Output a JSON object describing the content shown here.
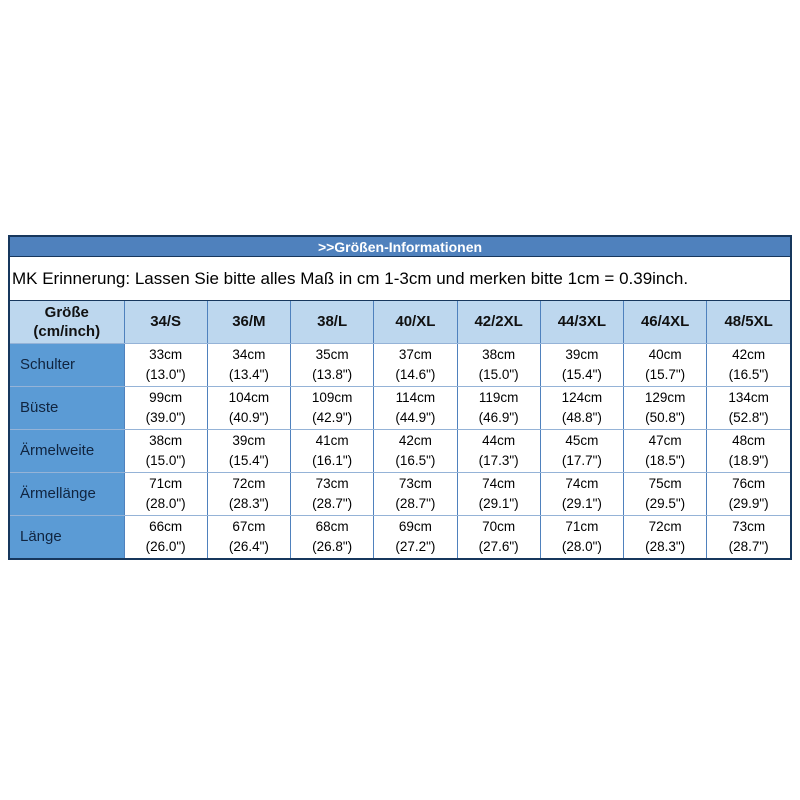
{
  "title_bar": {
    "text": ">>Größen-Informationen"
  },
  "notice": {
    "text": "MK Erinnerung: Lassen Sie bitte alles Maß in cm 1-3cm und merken bitte 1cm = 0.39inch."
  },
  "table": {
    "header": [
      "Größe\n(cm/inch)",
      "34/S",
      "36/M",
      "38/L",
      "40/XL",
      "42/2XL",
      "44/3XL",
      "46/4XL",
      "48/5XL"
    ],
    "rows": [
      {
        "label": "Schulter",
        "cells": [
          {
            "cm": "33cm",
            "inch": "(13.0\")"
          },
          {
            "cm": "34cm",
            "inch": "(13.4\")"
          },
          {
            "cm": "35cm",
            "inch": "(13.8\")"
          },
          {
            "cm": "37cm",
            "inch": "(14.6\")"
          },
          {
            "cm": "38cm",
            "inch": "(15.0\")"
          },
          {
            "cm": "39cm",
            "inch": "(15.4\")"
          },
          {
            "cm": "40cm",
            "inch": "(15.7\")"
          },
          {
            "cm": "42cm",
            "inch": "(16.5\")"
          }
        ]
      },
      {
        "label": "Büste",
        "cells": [
          {
            "cm": "99cm",
            "inch": "(39.0\")"
          },
          {
            "cm": "104cm",
            "inch": "(40.9\")"
          },
          {
            "cm": "109cm",
            "inch": "(42.9\")"
          },
          {
            "cm": "114cm",
            "inch": "(44.9\")"
          },
          {
            "cm": "119cm",
            "inch": "(46.9\")"
          },
          {
            "cm": "124cm",
            "inch": "(48.8\")"
          },
          {
            "cm": "129cm",
            "inch": "(50.8\")"
          },
          {
            "cm": "134cm",
            "inch": "(52.8\")"
          }
        ]
      },
      {
        "label": "Ärmelweite",
        "cells": [
          {
            "cm": "38cm",
            "inch": "(15.0\")"
          },
          {
            "cm": "39cm",
            "inch": "(15.4\")"
          },
          {
            "cm": "41cm",
            "inch": "(16.1\")"
          },
          {
            "cm": "42cm",
            "inch": "(16.5\")"
          },
          {
            "cm": "44cm",
            "inch": "(17.3\")"
          },
          {
            "cm": "45cm",
            "inch": "(17.7\")"
          },
          {
            "cm": "47cm",
            "inch": "(18.5\")"
          },
          {
            "cm": "48cm",
            "inch": "(18.9\")"
          }
        ]
      },
      {
        "label": "Ärmellänge",
        "cells": [
          {
            "cm": "71cm",
            "inch": "(28.0\")"
          },
          {
            "cm": "72cm",
            "inch": "(28.3\")"
          },
          {
            "cm": "73cm",
            "inch": "(28.7\")"
          },
          {
            "cm": "73cm",
            "inch": "(28.7\")"
          },
          {
            "cm": "74cm",
            "inch": "(29.1\")"
          },
          {
            "cm": "74cm",
            "inch": "(29.1\")"
          },
          {
            "cm": "75cm",
            "inch": "(29.5\")"
          },
          {
            "cm": "76cm",
            "inch": "(29.9\")"
          }
        ]
      },
      {
        "label": "Länge",
        "cells": [
          {
            "cm": "66cm",
            "inch": "(26.0\")"
          },
          {
            "cm": "67cm",
            "inch": "(26.4\")"
          },
          {
            "cm": "68cm",
            "inch": "(26.8\")"
          },
          {
            "cm": "69cm",
            "inch": "(27.2\")"
          },
          {
            "cm": "70cm",
            "inch": "(27.6\")"
          },
          {
            "cm": "71cm",
            "inch": "(28.0\")"
          },
          {
            "cm": "72cm",
            "inch": "(28.3\")"
          },
          {
            "cm": "73cm",
            "inch": "(28.7\")"
          }
        ]
      }
    ]
  },
  "colors": {
    "title_bar_bg": "#4f81bd",
    "title_bar_text": "#ffffff",
    "header_row_bg": "#bdd7ee",
    "label_col_bg": "#5b9bd5",
    "outer_border": "#17375d",
    "grid_vertical": "#4f81bd",
    "grid_horizontal": "#95b3d7",
    "cell_bg": "#ffffff",
    "text": "#000000"
  }
}
